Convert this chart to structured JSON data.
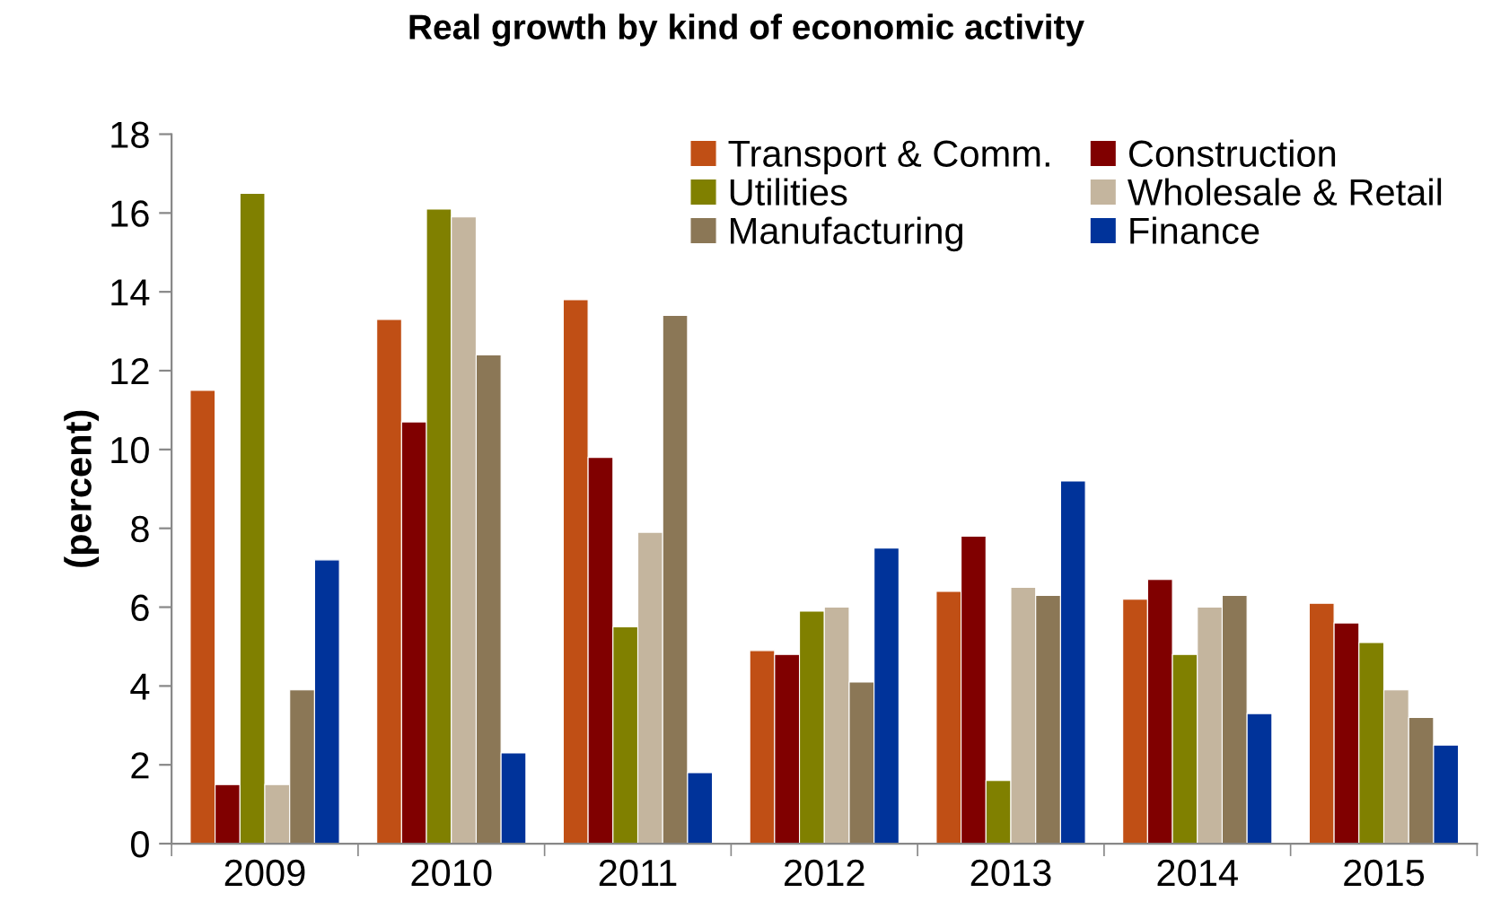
{
  "chart_data": {
    "type": "bar",
    "title": "Real growth by kind of economic activity",
    "ylabel": "(percent)",
    "categories": [
      "2009",
      "2010",
      "2011",
      "2012",
      "2013",
      "2014",
      "2015"
    ],
    "series": [
      {
        "name": "Transport & Comm.",
        "color": "#c04f15",
        "values": [
          11.5,
          13.3,
          13.8,
          4.9,
          6.4,
          6.2,
          6.1
        ]
      },
      {
        "name": "Construction",
        "color": "#800000",
        "values": [
          1.5,
          10.7,
          9.8,
          4.8,
          7.8,
          6.7,
          5.6
        ]
      },
      {
        "name": "Utilities",
        "color": "#808000",
        "values": [
          16.5,
          16.1,
          5.5,
          5.9,
          1.6,
          4.8,
          5.1
        ]
      },
      {
        "name": "Wholesale & Retail",
        "color": "#c4b59e",
        "values": [
          1.5,
          15.9,
          7.9,
          6.0,
          6.5,
          6.0,
          3.9
        ]
      },
      {
        "name": "Manufacturing",
        "color": "#8b7756",
        "values": [
          3.9,
          12.4,
          13.4,
          4.1,
          6.3,
          6.3,
          3.2
        ]
      },
      {
        "name": "Finance",
        "color": "#00339a",
        "values": [
          7.2,
          2.3,
          1.8,
          7.5,
          9.2,
          3.3,
          2.5
        ]
      }
    ],
    "ylim": [
      0,
      18
    ],
    "yticks": [
      0,
      2,
      4,
      6,
      8,
      10,
      12,
      14,
      16,
      18
    ],
    "grid": false,
    "legend": "top right"
  }
}
